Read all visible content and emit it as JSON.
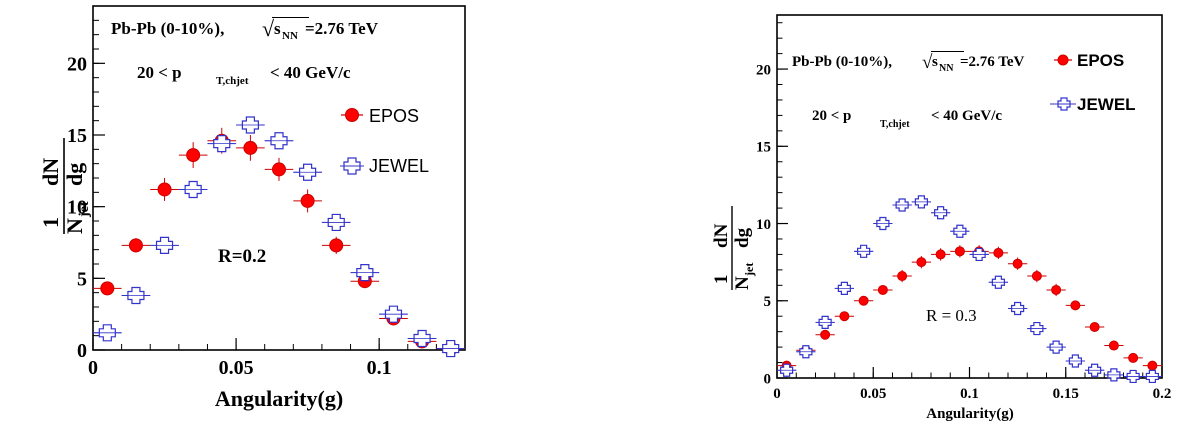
{
  "chart_data": [
    {
      "type": "scatter",
      "header": {
        "system": "Pb-Pb (0-10%),",
        "sqrt_symbol": "√",
        "s_main": "s",
        "s_sub": "NN",
        "energy": "=2.76 TeV"
      },
      "selection": {
        "pre": "20 < p",
        "sub": "T,chjet",
        "post": "< 40 GeV/c"
      },
      "radius_label": "R=0.2",
      "xlabel": "Angularity(g)",
      "ylabel": {
        "n1": "1",
        "dN": "dN",
        "N": "N",
        "jet_sub": "jet",
        "dg": "dg"
      },
      "xlim": [
        0,
        0.13
      ],
      "ylim": [
        0,
        24
      ],
      "x_ticks": [
        {
          "v": 0,
          "label": "0"
        },
        {
          "v": 0.05,
          "label": "0.05"
        },
        {
          "v": 0.1,
          "label": "0.1"
        }
      ],
      "y_ticks": [
        {
          "v": 0,
          "label": "0"
        },
        {
          "v": 5,
          "label": "5"
        },
        {
          "v": 10,
          "label": "10"
        },
        {
          "v": 15,
          "label": "15"
        },
        {
          "v": 20,
          "label": "20"
        }
      ],
      "bin_width": 0.01,
      "series": [
        {
          "name": "EPOS",
          "marker": "circle",
          "color": "#ff0000",
          "edge": "#cc0000",
          "x": [
            0.005,
            0.015,
            0.025,
            0.035,
            0.045,
            0.055,
            0.065,
            0.075,
            0.085,
            0.095,
            0.105,
            0.115,
            0.125
          ],
          "y": [
            4.3,
            7.3,
            11.2,
            13.6,
            14.6,
            14.1,
            12.6,
            10.4,
            7.3,
            4.8,
            2.2,
            0.6,
            0.1
          ],
          "err": [
            0.4,
            0.5,
            0.8,
            0.9,
            0.9,
            0.9,
            0.8,
            0.8,
            0.6,
            0.4,
            0.3,
            0.3,
            0.3
          ]
        },
        {
          "name": "JEWEL",
          "marker": "open-cross",
          "color": "#3333cc",
          "edge": "#3333cc",
          "x": [
            0.005,
            0.015,
            0.025,
            0.035,
            0.045,
            0.055,
            0.065,
            0.075,
            0.085,
            0.095,
            0.105,
            0.115,
            0.125
          ],
          "y": [
            1.2,
            3.8,
            7.3,
            11.2,
            14.4,
            15.7,
            14.6,
            12.4,
            8.9,
            5.4,
            2.5,
            0.8,
            0.1
          ],
          "err": [
            0.2,
            0.2,
            0.2,
            0.2,
            0.2,
            0.2,
            0.2,
            0.2,
            0.2,
            0.2,
            0.2,
            0.2,
            0.2
          ]
        }
      ]
    },
    {
      "type": "scatter",
      "header": {
        "system": "Pb-Pb (0-10%),",
        "sqrt_symbol": "√",
        "s_main": "s",
        "s_sub": "NN",
        "energy": "=2.76 TeV"
      },
      "selection": {
        "pre": "20 < p",
        "sub": "T,chjet",
        "post": "< 40 GeV/c"
      },
      "radius_label": "R = 0.3",
      "xlabel": "Angularity(g)",
      "ylabel": {
        "n1": "1",
        "dN": "dN",
        "N": "N",
        "jet_sub": "jet",
        "dg": "dg"
      },
      "xlim": [
        0,
        0.2
      ],
      "ylim": [
        0,
        23.5
      ],
      "x_ticks": [
        {
          "v": 0,
          "label": "0"
        },
        {
          "v": 0.05,
          "label": "0.05"
        },
        {
          "v": 0.1,
          "label": "0.1"
        },
        {
          "v": 0.15,
          "label": "0.15"
        },
        {
          "v": 0.2,
          "label": "0.2"
        }
      ],
      "y_ticks": [
        {
          "v": 0,
          "label": "0"
        },
        {
          "v": 5,
          "label": "5"
        },
        {
          "v": 10,
          "label": "10"
        },
        {
          "v": 15,
          "label": "15"
        },
        {
          "v": 20,
          "label": "20"
        }
      ],
      "bin_width": 0.01,
      "series": [
        {
          "name": "EPOS",
          "marker": "circle",
          "color": "#ff0000",
          "edge": "#cc0000",
          "x": [
            0.005,
            0.015,
            0.025,
            0.035,
            0.045,
            0.055,
            0.065,
            0.075,
            0.085,
            0.095,
            0.105,
            0.115,
            0.125,
            0.135,
            0.145,
            0.155,
            0.165,
            0.175,
            0.185,
            0.195
          ],
          "y": [
            0.8,
            1.8,
            2.8,
            4.0,
            5.0,
            5.7,
            6.6,
            7.5,
            8.0,
            8.2,
            8.2,
            8.1,
            7.4,
            6.6,
            5.7,
            4.7,
            3.3,
            2.1,
            1.3,
            0.8
          ],
          "err": [
            0.3,
            0.3,
            0.3,
            0.3,
            0.3,
            0.3,
            0.4,
            0.4,
            0.4,
            0.4,
            0.4,
            0.4,
            0.4,
            0.4,
            0.4,
            0.3,
            0.3,
            0.3,
            0.3,
            0.3
          ]
        },
        {
          "name": "JEWEL",
          "marker": "open-cross",
          "color": "#3333cc",
          "edge": "#3333cc",
          "x": [
            0.005,
            0.015,
            0.025,
            0.035,
            0.045,
            0.055,
            0.065,
            0.075,
            0.085,
            0.095,
            0.105,
            0.115,
            0.125,
            0.135,
            0.145,
            0.155,
            0.165,
            0.175,
            0.185,
            0.195
          ],
          "y": [
            0.5,
            1.7,
            3.6,
            5.8,
            8.2,
            10.0,
            11.2,
            11.4,
            10.7,
            9.5,
            8.0,
            6.2,
            4.5,
            3.2,
            2.0,
            1.1,
            0.5,
            0.2,
            0.1,
            0.1
          ],
          "err": [
            0.1,
            0.1,
            0.1,
            0.1,
            0.1,
            0.1,
            0.1,
            0.1,
            0.1,
            0.1,
            0.1,
            0.1,
            0.1,
            0.1,
            0.1,
            0.1,
            0.1,
            0.1,
            0.1,
            0.1
          ]
        }
      ]
    }
  ]
}
